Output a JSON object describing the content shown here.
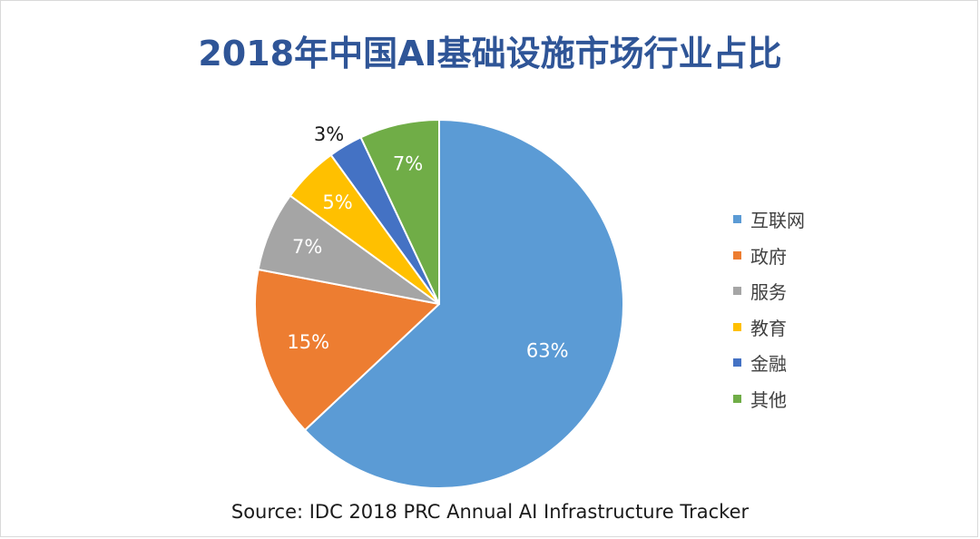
{
  "chart_data": {
    "type": "pie",
    "title": "2018年中国AI基础设施市场行业占比",
    "categories": [
      "互联网",
      "政府",
      "服务",
      "教育",
      "金融",
      "其他"
    ],
    "values": [
      63,
      15,
      7,
      5,
      3,
      7
    ],
    "value_labels": [
      "63%",
      "15%",
      "7%",
      "5%",
      "3%",
      "7%"
    ],
    "colors": [
      "#5b9bd5",
      "#ed7d31",
      "#a5a5a5",
      "#ffc000",
      "#4472c4",
      "#70ad47"
    ],
    "label_colors": [
      "#ffffff",
      "#ffffff",
      "#ffffff",
      "#ffffff",
      "#1a1a1a",
      "#ffffff"
    ],
    "start_angle_deg": 0,
    "direction": "clockwise",
    "legend_position": "right",
    "source": "Source: IDC 2018 PRC Annual AI Infrastructure Tracker"
  }
}
